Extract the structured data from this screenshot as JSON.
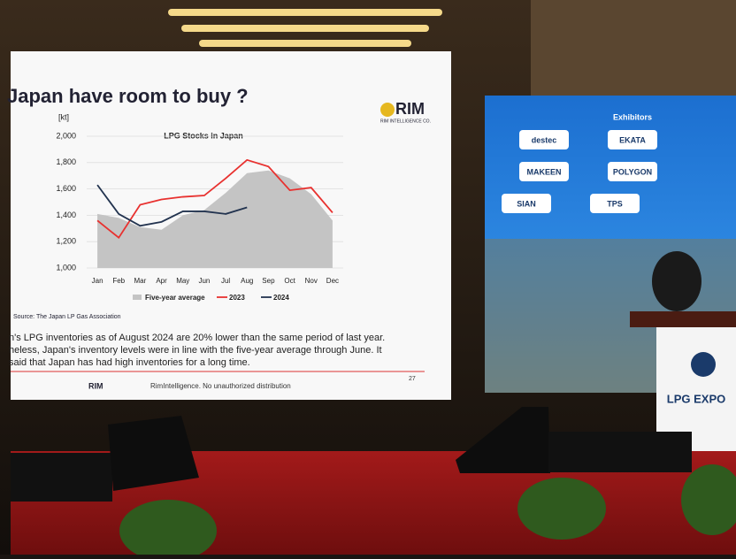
{
  "chart_data": {
    "type": "line",
    "title": "LPG Stocks in Japan",
    "y_unit": "[kt]",
    "categories": [
      "Jan",
      "Feb",
      "Mar",
      "Apr",
      "May",
      "Jun",
      "Jul",
      "Aug",
      "Sep",
      "Oct",
      "Nov",
      "Dec"
    ],
    "series": [
      {
        "name": "Five-year average",
        "color": "#c4c4c4",
        "style": "area",
        "values": [
          1410,
          1380,
          1310,
          1290,
          1400,
          1440,
          1570,
          1720,
          1740,
          1680,
          1560,
          1360
        ]
      },
      {
        "name": "2023",
        "color": "#e8312f",
        "style": "line",
        "values": [
          1360,
          1230,
          1480,
          1520,
          1540,
          1550,
          1680,
          1820,
          1770,
          1590,
          1610,
          1420
        ]
      },
      {
        "name": "2024",
        "color": "#22334f",
        "style": "line",
        "values": [
          1630,
          1410,
          1320,
          1350,
          1430,
          1430,
          1410,
          1460,
          null,
          null,
          null,
          null
        ]
      }
    ],
    "ylim": [
      1000,
      2000
    ],
    "yticks": [
      {
        "value": 1000,
        "label": "1,000"
      },
      {
        "value": 1200,
        "label": "1,200"
      },
      {
        "value": 1400,
        "label": "1,400"
      },
      {
        "value": 1600,
        "label": "1,600"
      },
      {
        "value": 1800,
        "label": "1,800"
      },
      {
        "value": 2000,
        "label": "2,000"
      }
    ],
    "grid": true
  },
  "slide": {
    "title": "Japan have room to buy ?",
    "logo": "RIM",
    "logo_sub": "RIM INTELLIGENCE CO.",
    "source": "Source: The Japan LP Gas Association",
    "text": [
      "n's LPG inventories as of August 2024 are 20% lower than the same period of last year.",
      "heless, Japan's inventory levels were in line with the five-year average through June. It",
      "said that Japan has had high inventories for a long time."
    ],
    "page": "27",
    "footer_logo": "RIM",
    "footer": "RimIntelligence. No unauthorized distribution"
  },
  "screen2": {
    "title": "Exhibitors",
    "logos": [
      "destec",
      "EKATA",
      "MAKEEN",
      "POLYGON",
      "SIAN",
      "TPS"
    ]
  },
  "podium": {
    "label": "LPG EXPO"
  }
}
